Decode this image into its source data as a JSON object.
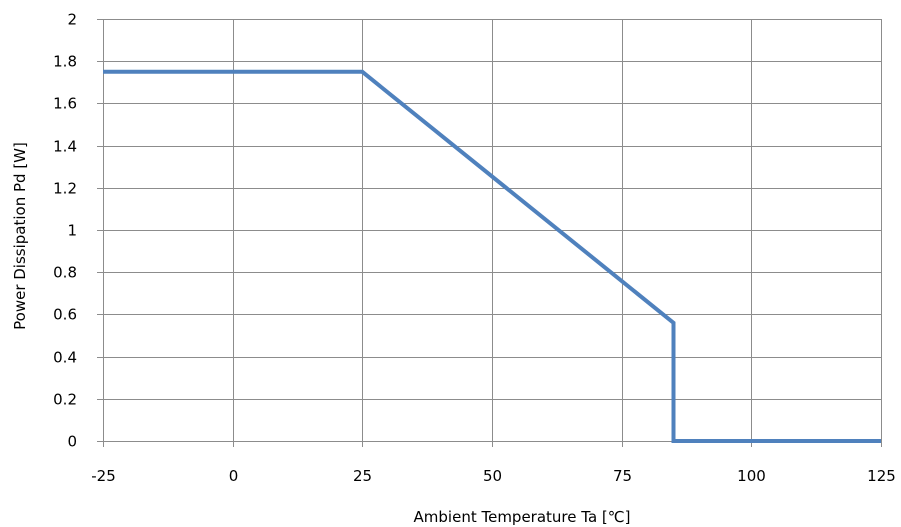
{
  "chart_data": {
    "type": "line",
    "title": "",
    "xlabel": "Ambient Temperature Ta [℃]",
    "ylabel": "Power Dissipation Pd [W]",
    "xlim": [
      -25,
      125
    ],
    "ylim": [
      0,
      2
    ],
    "xticks": [
      -25,
      0,
      25,
      50,
      75,
      100,
      125
    ],
    "yticks": [
      0,
      0.2,
      0.4,
      0.6,
      0.8,
      1,
      1.2,
      1.4,
      1.6,
      1.8,
      2
    ],
    "xtick_labels": [
      "-25",
      "0",
      "25",
      "50",
      "75",
      "100",
      "125"
    ],
    "ytick_labels": [
      "0",
      "0.2",
      "0.4",
      "0.6",
      "0.8",
      "1",
      "1.2",
      "1.4",
      "1.6",
      "1.8",
      "2"
    ],
    "grid": true,
    "legend": "none",
    "series": [
      {
        "color": "#4f81bd",
        "x": [
          -25,
          25,
          85,
          85,
          125
        ],
        "y": [
          1.75,
          1.75,
          0.56,
          0,
          0
        ]
      }
    ]
  }
}
